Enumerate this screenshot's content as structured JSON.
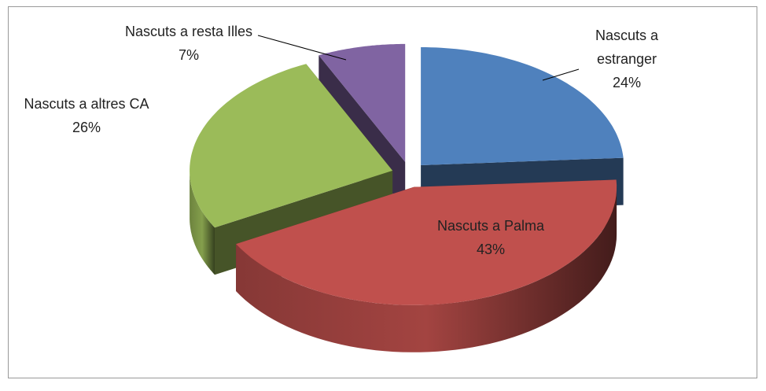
{
  "chart_data": {
    "type": "pie",
    "categories": [
      "Nascuts a estranger",
      "Nascuts a Palma",
      "Nascuts a altres CA",
      "Nascuts a resta Illes"
    ],
    "values": [
      24,
      43,
      26,
      7
    ],
    "value_labels": [
      "24%",
      "43%",
      "26%",
      "7%"
    ],
    "colors": [
      "#4f81bd",
      "#c0504d",
      "#9bbb59",
      "#8064a2"
    ]
  }
}
